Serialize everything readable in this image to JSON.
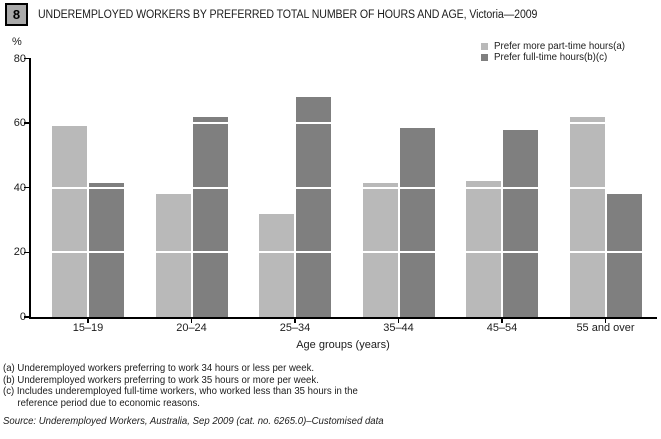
{
  "figure_number": "8",
  "title": "UNDEREMPLOYED WORKERS BY PREFERRED TOTAL NUMBER OF HOURS AND AGE, Victoria—2009",
  "y_axis_unit": "%",
  "colors": {
    "part_time_series": "#b9b9b9",
    "full_time_series": "#7f7f7f",
    "axis": "#000000",
    "figure_box_bg": "#a9a9a9"
  },
  "legend": [
    {
      "label": "Prefer more part-time hours(a)",
      "color": "#b9b9b9"
    },
    {
      "label": "Prefer full-time hours(b)(c)",
      "color": "#7f7f7f"
    }
  ],
  "chart_data": {
    "type": "bar",
    "title": "UNDEREMPLOYED WORKERS BY PREFERRED TOTAL NUMBER OF HOURS AND AGE, Victoria—2009",
    "categories": [
      "15–19",
      "20–24",
      "25–34",
      "35–44",
      "45–54",
      "55 and over"
    ],
    "series": [
      {
        "name": "Prefer more part-time hours(a)",
        "color": "#b9b9b9",
        "values": [
          59,
          38,
          32,
          41.5,
          42,
          62
        ]
      },
      {
        "name": "Prefer full-time hours(b)(c)",
        "color": "#7f7f7f",
        "values": [
          41.5,
          62,
          68,
          58.5,
          58,
          38
        ]
      }
    ],
    "xlabel": "Age groups (years)",
    "ylabel": "%",
    "ylim": [
      0,
      80
    ],
    "yticks": [
      0,
      20,
      40,
      60,
      80
    ],
    "grid": "white horizontal gridlines over bars at 20, 40, 60",
    "legend_position": "top-right"
  },
  "footnotes": [
    {
      "text": "(a) Underemployed workers preferring to work 34 hours or less per week.",
      "indent": 0
    },
    {
      "text": "(b) Underemployed workers preferring to work 35 hours or more per week.",
      "indent": 0
    },
    {
      "text": "(c) Includes underemployed full-time workers, who worked less than 35 hours in the",
      "indent": 0
    },
    {
      "text": "reference period due to economic reasons.",
      "indent": 15
    }
  ],
  "source": "Source: Underemployed Workers, Australia, Sep 2009 (cat. no. 6265.0)–Customised data"
}
